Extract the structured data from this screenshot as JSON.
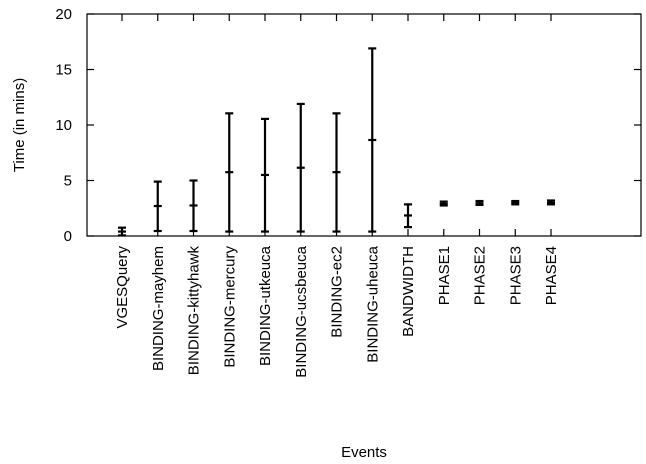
{
  "chart_data": {
    "type": "errorbar",
    "title": "",
    "xlabel": "Events",
    "ylabel": "Time (in mins)",
    "ylim": [
      0,
      20
    ],
    "yticks": [
      0,
      5,
      10,
      15,
      20
    ],
    "grid": false,
    "categories": [
      "VGESQuery",
      "BINDING-mayhem",
      "BINDING-kittyhawk",
      "BINDING-mercury",
      "BINDING-utkeuca",
      "BINDING-ucsbeuca",
      "BINDING-ec2",
      "BINDING-uheuca",
      "BANDWIDTH",
      "PHASE1",
      "PHASE2",
      "PHASE3",
      "PHASE4"
    ],
    "series": [
      {
        "mean": [
          0.4,
          2.7,
          2.75,
          5.75,
          5.5,
          6.15,
          5.75,
          8.65,
          1.85,
          2.9,
          2.95,
          3.0,
          3.0
        ],
        "min": [
          0.05,
          0.45,
          0.45,
          0.4,
          0.4,
          0.4,
          0.4,
          0.4,
          0.8,
          2.75,
          2.8,
          2.85,
          2.85
        ],
        "max": [
          0.75,
          4.9,
          5.0,
          11.05,
          10.55,
          11.9,
          11.05,
          16.9,
          2.85,
          3.1,
          3.15,
          3.15,
          3.2
        ]
      }
    ]
  }
}
